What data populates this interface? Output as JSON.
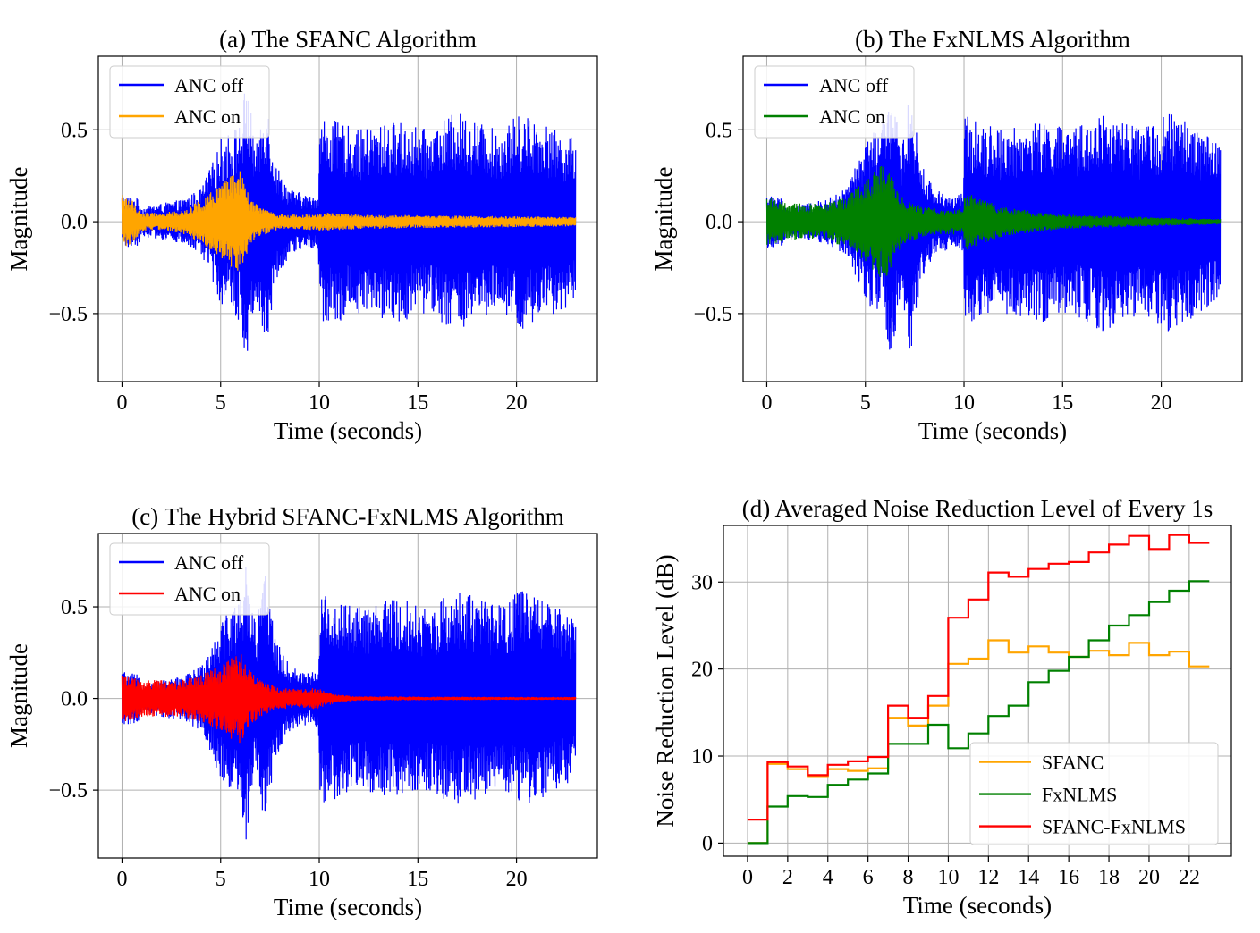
{
  "chart_data": [
    {
      "type": "line",
      "title": "(a) The SFANC Algorithm",
      "xlabel": "Time (seconds)",
      "ylabel": "Magnitude",
      "xlim": [
        -1.2,
        24.1
      ],
      "ylim": [
        -0.87,
        0.9
      ],
      "xticks": [
        0,
        5,
        10,
        15,
        20
      ],
      "xtick_labels": [
        "0",
        "5",
        "10",
        "15",
        "20"
      ],
      "yticks": [
        -0.5,
        0.0,
        0.5
      ],
      "ytick_labels": [
        "−0.5",
        "0.0",
        "0.5"
      ],
      "grid": true,
      "legend_position": "top-left",
      "series": [
        {
          "name": "ANC off",
          "color": "#0000ff",
          "envelope": {
            "t": [
              0,
              0.8,
              1,
              2,
              3,
              4,
              4.7,
              5,
              5.5,
              6,
              6.3,
              6.8,
              7,
              7.3,
              7.8,
              8.5,
              9.5,
              9.95,
              10.05,
              12,
              14,
              15.5,
              17,
              19,
              20.3,
              22,
              23
            ],
            "amp": [
              0.15,
              0.13,
              0.08,
              0.1,
              0.12,
              0.18,
              0.35,
              0.45,
              0.5,
              0.55,
              0.78,
              0.4,
              0.55,
              0.72,
              0.32,
              0.18,
              0.14,
              0.16,
              0.58,
              0.5,
              0.55,
              0.5,
              0.6,
              0.5,
              0.6,
              0.5,
              0.45
            ]
          }
        },
        {
          "name": "ANC on",
          "color": "#ffa500",
          "envelope": {
            "t": [
              0,
              0.5,
              1,
              2,
              3,
              4,
              5,
              5.5,
              6,
              6.5,
              7,
              8,
              9,
              10,
              12,
              15,
              20,
              23
            ],
            "amp": [
              0.15,
              0.12,
              0.05,
              0.05,
              0.06,
              0.12,
              0.2,
              0.25,
              0.28,
              0.12,
              0.08,
              0.04,
              0.04,
              0.05,
              0.04,
              0.035,
              0.03,
              0.025
            ]
          }
        }
      ]
    },
    {
      "type": "line",
      "title": "(b) The FxNLMS Algorithm",
      "xlabel": "Time (seconds)",
      "ylabel": "Magnitude",
      "xlim": [
        -1.2,
        24.1
      ],
      "ylim": [
        -0.87,
        0.9
      ],
      "xticks": [
        0,
        5,
        10,
        15,
        20
      ],
      "xtick_labels": [
        "0",
        "5",
        "10",
        "15",
        "20"
      ],
      "yticks": [
        -0.5,
        0.0,
        0.5
      ],
      "ytick_labels": [
        "−0.5",
        "0.0",
        "0.5"
      ],
      "grid": true,
      "legend_position": "top-left",
      "series": [
        {
          "name": "ANC off",
          "color": "#0000ff",
          "envelope": {
            "t": [
              0,
              0.8,
              1,
              2,
              3,
              4,
              4.7,
              5,
              5.5,
              6,
              6.3,
              6.8,
              7,
              7.3,
              7.8,
              8.5,
              9.5,
              9.95,
              10.05,
              12,
              14,
              15.5,
              17,
              19,
              20.3,
              22,
              23
            ],
            "amp": [
              0.15,
              0.13,
              0.08,
              0.1,
              0.12,
              0.18,
              0.35,
              0.45,
              0.5,
              0.55,
              0.78,
              0.4,
              0.55,
              0.72,
              0.32,
              0.18,
              0.14,
              0.16,
              0.58,
              0.5,
              0.55,
              0.5,
              0.6,
              0.5,
              0.6,
              0.5,
              0.45
            ]
          }
        },
        {
          "name": "ANC on",
          "color": "#008000",
          "envelope": {
            "t": [
              0,
              1,
              2,
              3,
              4,
              5,
              5.5,
              6,
              6.5,
              7,
              8,
              9,
              9.95,
              10.05,
              11,
              12,
              14,
              16,
              18,
              20,
              23
            ],
            "amp": [
              0.14,
              0.1,
              0.1,
              0.1,
              0.14,
              0.22,
              0.28,
              0.32,
              0.2,
              0.12,
              0.08,
              0.07,
              0.07,
              0.16,
              0.12,
              0.08,
              0.05,
              0.035,
              0.03,
              0.022,
              0.015
            ]
          }
        }
      ]
    },
    {
      "type": "line",
      "title": "(c) The Hybrid SFANC-FxNLMS Algorithm",
      "xlabel": "Time (seconds)",
      "ylabel": "Magnitude",
      "xlim": [
        -1.2,
        24.1
      ],
      "ylim": [
        -0.87,
        0.9
      ],
      "xticks": [
        0,
        5,
        10,
        15,
        20
      ],
      "xtick_labels": [
        "0",
        "5",
        "10",
        "15",
        "20"
      ],
      "yticks": [
        -0.5,
        0.0,
        0.5
      ],
      "ytick_labels": [
        "−0.5",
        "0.0",
        "0.5"
      ],
      "grid": true,
      "legend_position": "top-left",
      "series": [
        {
          "name": "ANC off",
          "color": "#0000ff",
          "envelope": {
            "t": [
              0,
              0.8,
              1,
              2,
              3,
              4,
              4.7,
              5,
              5.5,
              6,
              6.3,
              6.8,
              7,
              7.3,
              7.8,
              8.5,
              9.5,
              9.95,
              10.05,
              12,
              14,
              15.5,
              17,
              19,
              20.3,
              22,
              23
            ],
            "amp": [
              0.15,
              0.13,
              0.08,
              0.1,
              0.12,
              0.18,
              0.35,
              0.45,
              0.5,
              0.55,
              0.78,
              0.4,
              0.55,
              0.72,
              0.32,
              0.18,
              0.14,
              0.16,
              0.58,
              0.5,
              0.55,
              0.5,
              0.6,
              0.5,
              0.6,
              0.5,
              0.45
            ]
          }
        },
        {
          "name": "ANC on",
          "color": "#ff0000",
          "envelope": {
            "t": [
              0,
              1,
              2,
              3,
              4,
              5,
              5.5,
              6,
              6.5,
              7,
              8,
              9,
              9.95,
              10.05,
              11,
              12,
              15,
              20,
              23
            ],
            "amp": [
              0.14,
              0.1,
              0.1,
              0.1,
              0.13,
              0.18,
              0.22,
              0.25,
              0.15,
              0.1,
              0.06,
              0.05,
              0.06,
              0.05,
              0.02,
              0.012,
              0.01,
              0.008,
              0.008
            ]
          }
        }
      ]
    },
    {
      "type": "line",
      "step": true,
      "title": "(d) Averaged Noise Reduction Level of Every 1s",
      "xlabel": "Time (seconds)",
      "ylabel": "Noise Reduction Level (dB)",
      "xlim": [
        -1.2,
        24.1
      ],
      "ylim": [
        -1.5,
        36.5
      ],
      "xticks": [
        0,
        2,
        4,
        6,
        8,
        10,
        12,
        14,
        16,
        18,
        20,
        22
      ],
      "xtick_labels": [
        "0",
        "2",
        "4",
        "6",
        "8",
        "10",
        "12",
        "14",
        "16",
        "18",
        "20",
        "22"
      ],
      "yticks": [
        0,
        10,
        20,
        30
      ],
      "ytick_labels": [
        "0",
        "10",
        "20",
        "30"
      ],
      "grid": true,
      "legend_position": "lower-right",
      "x": [
        0,
        1,
        2,
        3,
        4,
        5,
        6,
        7,
        8,
        9,
        10,
        11,
        12,
        13,
        14,
        15,
        16,
        17,
        18,
        19,
        20,
        21,
        22,
        23
      ],
      "series": [
        {
          "name": "SFANC",
          "color": "#ffa500",
          "values": [
            0,
            9.1,
            8.5,
            7.6,
            8.5,
            8.3,
            8.6,
            14.4,
            13.5,
            15.8,
            20.6,
            21.2,
            23.3,
            21.9,
            22.6,
            21.9,
            21.4,
            22.1,
            21.6,
            23.0,
            21.6,
            22.0,
            20.3,
            20.3
          ]
        },
        {
          "name": "FxNLMS",
          "color": "#008000",
          "values": [
            0,
            4.2,
            5.4,
            5.3,
            6.7,
            7.3,
            8.0,
            11.4,
            11.4,
            13.6,
            10.9,
            12.6,
            14.6,
            15.8,
            18.5,
            19.8,
            21.4,
            23.3,
            25.0,
            26.2,
            27.7,
            29.0,
            30.1,
            30.1
          ]
        },
        {
          "name": "SFANC-FxNLMS",
          "color": "#ff0000",
          "values": [
            2.7,
            9.3,
            8.8,
            7.8,
            9.0,
            9.4,
            9.9,
            15.8,
            14.4,
            16.9,
            25.9,
            28.0,
            31.1,
            30.6,
            31.5,
            32.1,
            32.3,
            33.4,
            34.3,
            35.3,
            33.8,
            35.4,
            34.5,
            34.5
          ]
        }
      ]
    }
  ]
}
